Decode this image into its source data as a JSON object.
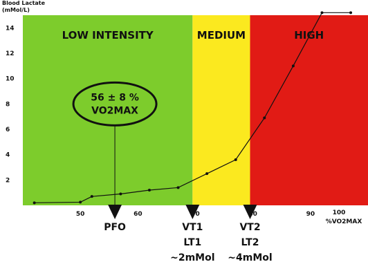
{
  "chart_data": {
    "type": "line",
    "ylabel_line1": "Blood Lactate",
    "ylabel_line2": "(mMol/L)",
    "xlabel": "%VO2MAX",
    "xlim": [
      40,
      100
    ],
    "ylim": [
      0,
      15
    ],
    "x_ticks": [
      50,
      60,
      70,
      80,
      90,
      100
    ],
    "y_ticks": [
      2,
      4,
      6,
      8,
      10,
      12,
      14
    ],
    "series": [
      {
        "x": [
          42,
          50,
          52,
          57,
          62,
          67,
          72,
          77,
          82,
          87,
          92,
          97
        ],
        "y": [
          0.2,
          0.25,
          0.7,
          0.9,
          1.2,
          1.4,
          2.5,
          3.6,
          6.9,
          11.0,
          15.2,
          15.2
        ]
      }
    ],
    "zones": [
      {
        "label": "LOW INTENSITY",
        "from": 40,
        "to": 69.5,
        "color": "#7dcc2c"
      },
      {
        "label": "MEDIUM",
        "from": 69.5,
        "to": 79.5,
        "color": "#fbe91f"
      },
      {
        "label": "HIGH",
        "from": 79.5,
        "to": 100,
        "color": "#e11b15"
      }
    ],
    "annotation": {
      "line1": "56 ± 8 %",
      "line2": "VO2MAX",
      "x": 56,
      "y": 8.0
    },
    "markers": [
      {
        "x": 56,
        "lines": [
          "PFO"
        ]
      },
      {
        "x": 69.5,
        "lines": [
          "VT1",
          "LT1",
          "~2mMol"
        ]
      },
      {
        "x": 79.5,
        "lines": [
          "VT2",
          "LT2",
          "~4mMol"
        ]
      }
    ]
  }
}
